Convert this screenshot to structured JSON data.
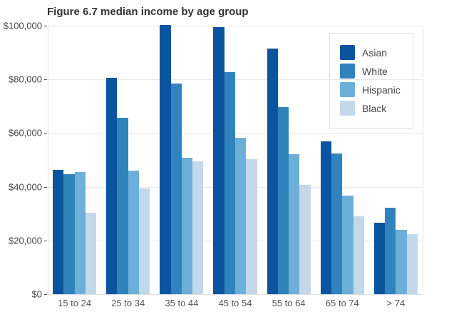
{
  "title": "Figure 6.7 median income by age group",
  "chart_data": {
    "type": "bar",
    "title": "Figure 6.7 median income by age group",
    "categories": [
      "15 to 24",
      "25 to 34",
      "35 to 44",
      "45 to 54",
      "55 to 64",
      "65 to 74",
      "> 74"
    ],
    "series": [
      {
        "name": "Asian",
        "color": "#0b54a0",
        "values": [
          46200,
          80600,
          100400,
          99400,
          91600,
          56900,
          26700
        ]
      },
      {
        "name": "White",
        "color": "#3183bd",
        "values": [
          44800,
          65700,
          78600,
          82600,
          69800,
          52500,
          32300
        ]
      },
      {
        "name": "Hispanic",
        "color": "#6cb0d9",
        "values": [
          45500,
          46100,
          50700,
          58300,
          52200,
          36800,
          23900
        ]
      },
      {
        "name": "Black",
        "color": "#c3d8e8",
        "values": [
          30400,
          39300,
          49600,
          50400,
          40600,
          29000,
          22300
        ]
      }
    ],
    "xlabel": "",
    "ylabel": "",
    "ylim": [
      0,
      100000
    ],
    "yticks": [
      0,
      20000,
      40000,
      60000,
      80000,
      100000
    ],
    "ytick_labels": [
      "$0",
      "$20,000",
      "$40,000",
      "$60,000",
      "$80,000",
      "$100,000"
    ],
    "grid": true,
    "legend_position": "top-right"
  },
  "colors": {
    "background": "#ffffff",
    "gridline": "#e8e8e8",
    "axis_text": "#444444",
    "title_text": "#333333"
  }
}
